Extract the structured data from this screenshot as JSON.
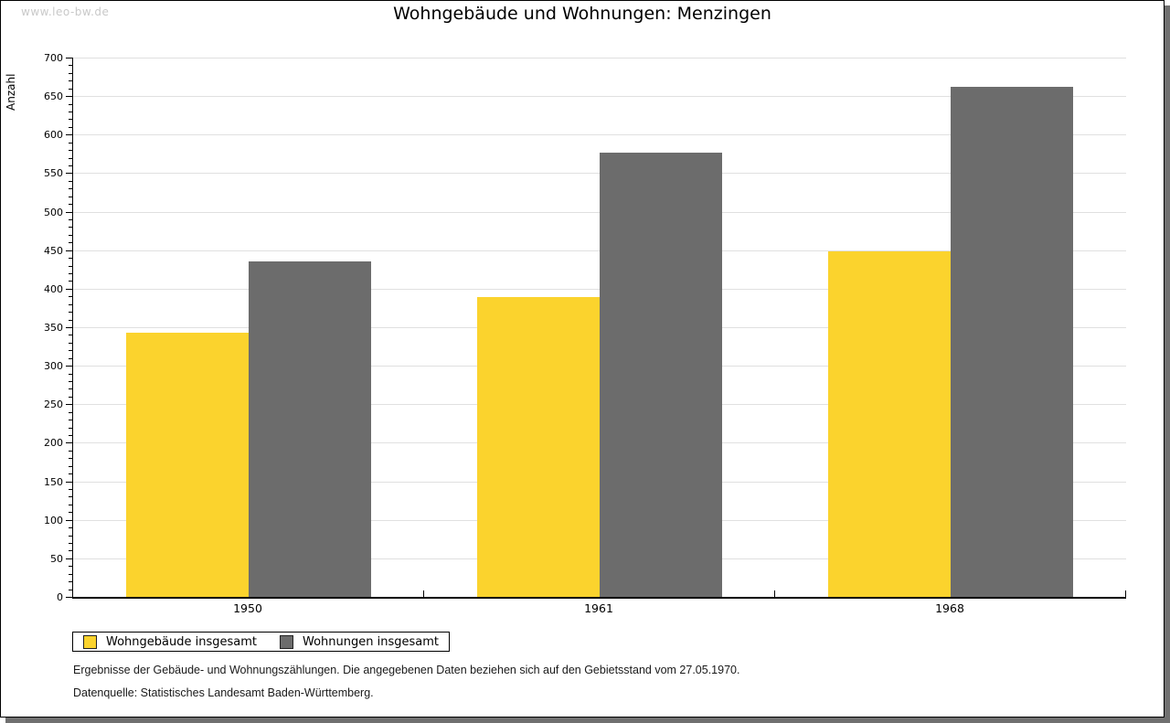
{
  "watermark": "www.leo-bw.de",
  "chart_data": {
    "type": "bar",
    "title": "Wohngebäude und Wohnungen: Menzingen",
    "ylabel": "Anzahl",
    "xlabel": "",
    "categories": [
      "1950",
      "1961",
      "1968"
    ],
    "series": [
      {
        "name": "Wohngebäude insgesamt",
        "color": "#FBD32D",
        "values": [
          343,
          389,
          449
        ]
      },
      {
        "name": "Wohnungen insgesamt",
        "color": "#6C6C6C",
        "values": [
          435,
          577,
          662
        ]
      }
    ],
    "ylim": [
      0,
      700
    ],
    "ytick_step": 50,
    "yminor_step": 10,
    "grid": "horizontal-major",
    "legend_position": "bottom-left"
  },
  "footnotes": [
    "Ergebnisse der Gebäude- und Wohnungszählungen. Die angegebenen Daten beziehen sich auf den Gebietsstand vom 27.05.1970.",
    "Datenquelle: Statistisches Landesamt Baden-Württemberg."
  ],
  "colors": {
    "bar_yellow": "#FBD32D",
    "bar_gray": "#6C6C6C",
    "gridline": "#E0E0E0",
    "axis": "#000000",
    "watermark_text": "#C9C9C9",
    "shadow": "#707070",
    "background": "#FFFFFF"
  }
}
